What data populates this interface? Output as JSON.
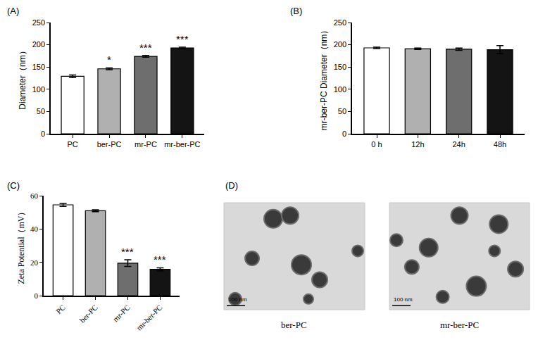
{
  "chart_data": [
    {
      "type": "bar",
      "title": "(A)",
      "categories": [
        "PC",
        "ber-PC",
        "mr-PC",
        "mr-ber-PC"
      ],
      "values": [
        129,
        146,
        174,
        193
      ],
      "errors": [
        3,
        2,
        2,
        1.5
      ],
      "significance": [
        null,
        "*",
        "***",
        "***"
      ],
      "colors": [
        "#ffffff",
        "#b0b0b0",
        "#6e6e6e",
        "#141414"
      ],
      "y_label": "Diameter（nm）",
      "ylim": [
        0,
        250
      ],
      "yticks": [
        0,
        50,
        100,
        150,
        200,
        250
      ],
      "grid": false
    },
    {
      "type": "bar",
      "title": "(B)",
      "categories": [
        "0 h",
        "12h",
        "24h",
        "48h"
      ],
      "values": [
        193,
        191,
        190,
        189
      ],
      "errors": [
        1.5,
        1.5,
        2.5,
        9
      ],
      "colors": [
        "#ffffff",
        "#b0b0b0",
        "#6e6e6e",
        "#141414"
      ],
      "y_label": "mr-ber-PC Diameter（nm）",
      "ylim": [
        0,
        250
      ],
      "yticks": [
        0,
        50,
        100,
        150,
        200,
        250
      ],
      "grid": false
    },
    {
      "type": "bar",
      "title": "(C)",
      "categories": [
        "PC",
        "ber-PC",
        "mr-PC",
        "mr-ber-PC"
      ],
      "values": [
        54.5,
        51,
        19.5,
        15.8
      ],
      "errors": [
        0.9,
        0.6,
        2,
        0.9
      ],
      "significance": [
        null,
        null,
        "***",
        "***"
      ],
      "colors": [
        "#ffffff",
        "#b0b0b0",
        "#6e6e6e",
        "#141414"
      ],
      "y_label": "Zeta Potential（mV）",
      "ylim": [
        0,
        60
      ],
      "yticks": [
        0,
        20,
        40,
        60
      ],
      "grid": false
    }
  ],
  "panel_d": {
    "label": "(D)",
    "images": [
      {
        "caption": "ber-PC",
        "scale_bar": "100 nm"
      },
      {
        "caption": "mr-ber-PC",
        "scale_bar": "100 nm"
      }
    ]
  }
}
